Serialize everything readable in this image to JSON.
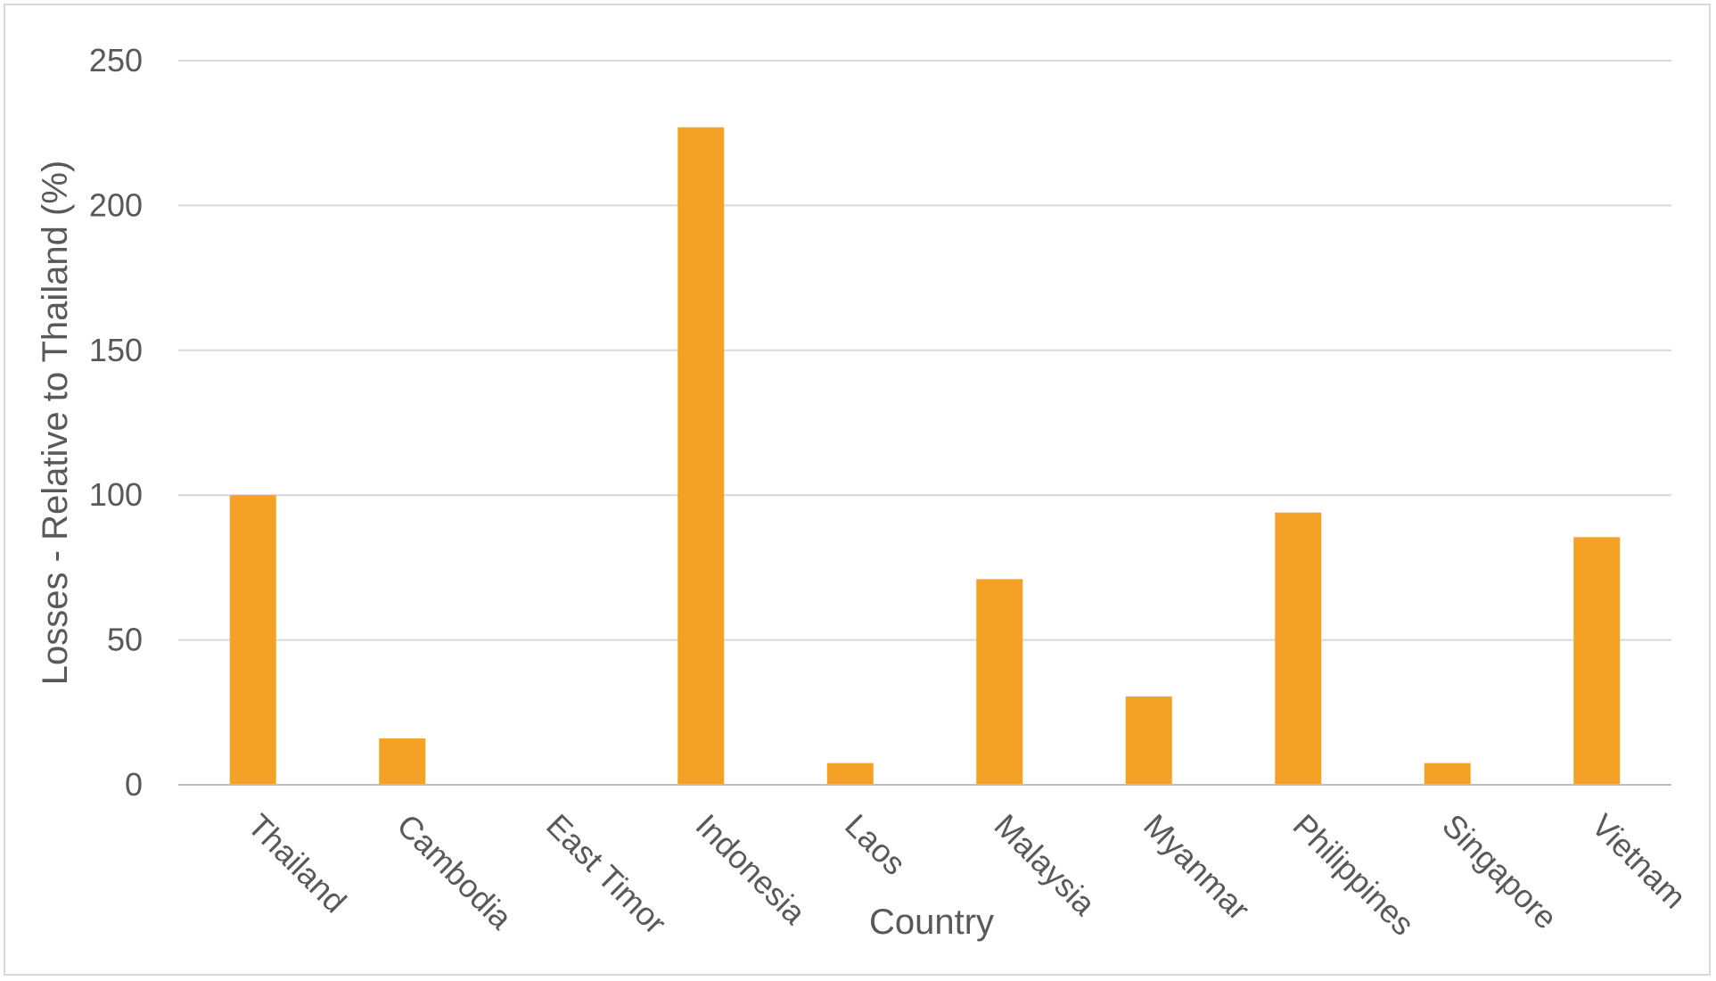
{
  "chart_data": {
    "type": "bar",
    "title": "",
    "xlabel": "Country",
    "ylabel": "Losses - Relative to  Thailand (%)",
    "categories": [
      "Thailand",
      "Cambodia",
      "East Timor",
      "Indonesia",
      "Laos",
      "Malaysia",
      "Myanmar",
      "Philippines",
      "Singapore",
      "Vietnam"
    ],
    "series": [
      {
        "values": [
          100,
          16,
          0,
          227,
          7.5,
          71,
          30.5,
          94,
          7.5,
          85.5
        ]
      }
    ],
    "ylim": [
      0,
      250
    ],
    "yticks": [
      "0",
      "50",
      "100",
      "150",
      "200",
      "250"
    ],
    "grid": true,
    "legend": "none",
    "colors": {
      "bar": "#F5A126",
      "grid": "#d9d9d9",
      "axis": "#bfbfbf",
      "text": "#595959"
    }
  }
}
